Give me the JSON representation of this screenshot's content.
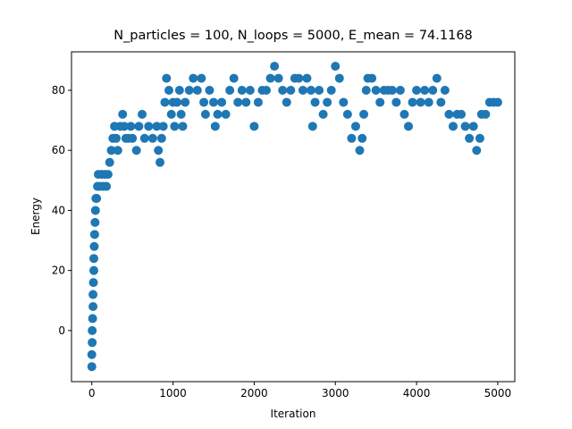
{
  "chart_data": {
    "type": "scatter",
    "title": "N_particles = 100, N_loops = 5000, E_mean = 74.1168",
    "x_label": "Iteration",
    "y_label": "Energy",
    "color": "#1f77b4",
    "xlim": [
      -250,
      5210
    ],
    "ylim": [
      -17,
      92.8
    ],
    "xticks": [
      0,
      1000,
      2000,
      3000,
      4000,
      5000
    ],
    "yticks": [
      0,
      20,
      40,
      60,
      80
    ],
    "x": [
      0,
      0,
      5,
      5,
      10,
      15,
      15,
      20,
      25,
      25,
      30,
      35,
      40,
      45,
      50,
      60,
      70,
      80,
      100,
      120,
      140,
      160,
      180,
      200,
      220,
      240,
      260,
      280,
      300,
      320,
      350,
      380,
      400,
      420,
      450,
      480,
      500,
      550,
      580,
      620,
      650,
      700,
      750,
      800,
      820,
      840,
      860,
      880,
      900,
      920,
      950,
      980,
      1000,
      1020,
      1050,
      1080,
      1100,
      1120,
      1150,
      1200,
      1250,
      1300,
      1350,
      1380,
      1400,
      1450,
      1500,
      1520,
      1550,
      1600,
      1650,
      1700,
      1750,
      1800,
      1850,
      1900,
      1950,
      2000,
      2050,
      2100,
      2150,
      2200,
      2250,
      2300,
      2350,
      2400,
      2450,
      2500,
      2550,
      2600,
      2650,
      2700,
      2720,
      2750,
      2800,
      2850,
      2900,
      2950,
      3000,
      3050,
      3100,
      3150,
      3200,
      3250,
      3300,
      3330,
      3350,
      3380,
      3400,
      3450,
      3500,
      3550,
      3600,
      3650,
      3700,
      3750,
      3800,
      3850,
      3900,
      3950,
      4000,
      4050,
      4100,
      4150,
      4200,
      4250,
      4300,
      4350,
      4400,
      4450,
      4500,
      4550,
      4600,
      4650,
      4700,
      4740,
      4780,
      4800,
      4850,
      4900,
      4950,
      5000
    ],
    "values": [
      -12,
      -8,
      -4,
      0,
      4,
      8,
      12,
      16,
      20,
      24,
      28,
      32,
      36,
      40,
      44,
      44,
      48,
      52,
      48,
      52,
      48,
      52,
      48,
      52,
      56,
      60,
      64,
      68,
      64,
      60,
      68,
      72,
      68,
      64,
      64,
      68,
      64,
      60,
      68,
      72,
      64,
      68,
      64,
      68,
      60,
      56,
      64,
      68,
      76,
      84,
      80,
      72,
      76,
      68,
      76,
      80,
      72,
      68,
      76,
      80,
      84,
      80,
      84,
      76,
      72,
      80,
      76,
      68,
      72,
      76,
      72,
      80,
      84,
      76,
      80,
      76,
      80,
      68,
      76,
      80,
      80,
      84,
      88,
      84,
      80,
      76,
      80,
      84,
      84,
      80,
      84,
      80,
      68,
      76,
      80,
      72,
      76,
      80,
      88,
      84,
      76,
      72,
      64,
      68,
      60,
      64,
      72,
      80,
      84,
      84,
      80,
      76,
      80,
      80,
      80,
      76,
      80,
      72,
      68,
      76,
      80,
      76,
      80,
      76,
      80,
      84,
      76,
      80,
      72,
      68,
      72,
      72,
      68,
      64,
      68,
      60,
      64,
      72,
      72,
      76,
      76,
      76
    ]
  }
}
